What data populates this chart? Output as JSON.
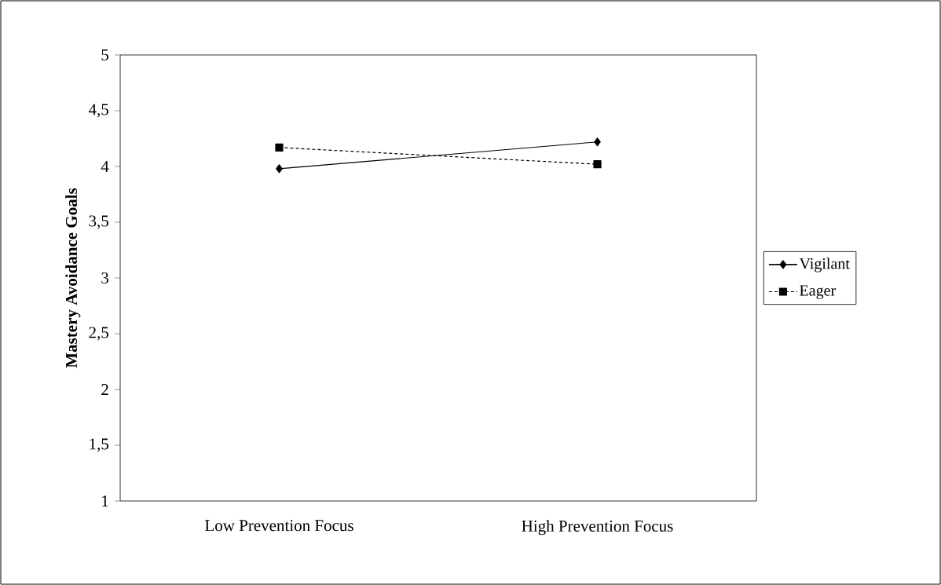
{
  "chart_data": {
    "type": "line",
    "ylabel": "Mastery Avoidance Goals",
    "categories": [
      "Low Prevention Focus",
      "High Prevention Focus"
    ],
    "series": [
      {
        "name": "Vigilant",
        "color": "#000000",
        "values": [
          3.98,
          4.22
        ],
        "marker": "diamond",
        "line_style": "solid"
      },
      {
        "name": "Eager",
        "color": "#000000",
        "values": [
          4.17,
          4.02
        ],
        "marker": "square",
        "line_style": "dashed"
      }
    ],
    "ylim": [
      1,
      5
    ],
    "yticks": [
      1,
      {
        "value": 1.5,
        "label": "1,5"
      },
      2,
      {
        "value": 2.5,
        "label": "2,5"
      },
      3,
      {
        "value": 3.5,
        "label": "3,5"
      },
      4,
      {
        "value": 4.5,
        "label": "4,5"
      },
      5
    ],
    "grid": false,
    "legend": "right"
  }
}
